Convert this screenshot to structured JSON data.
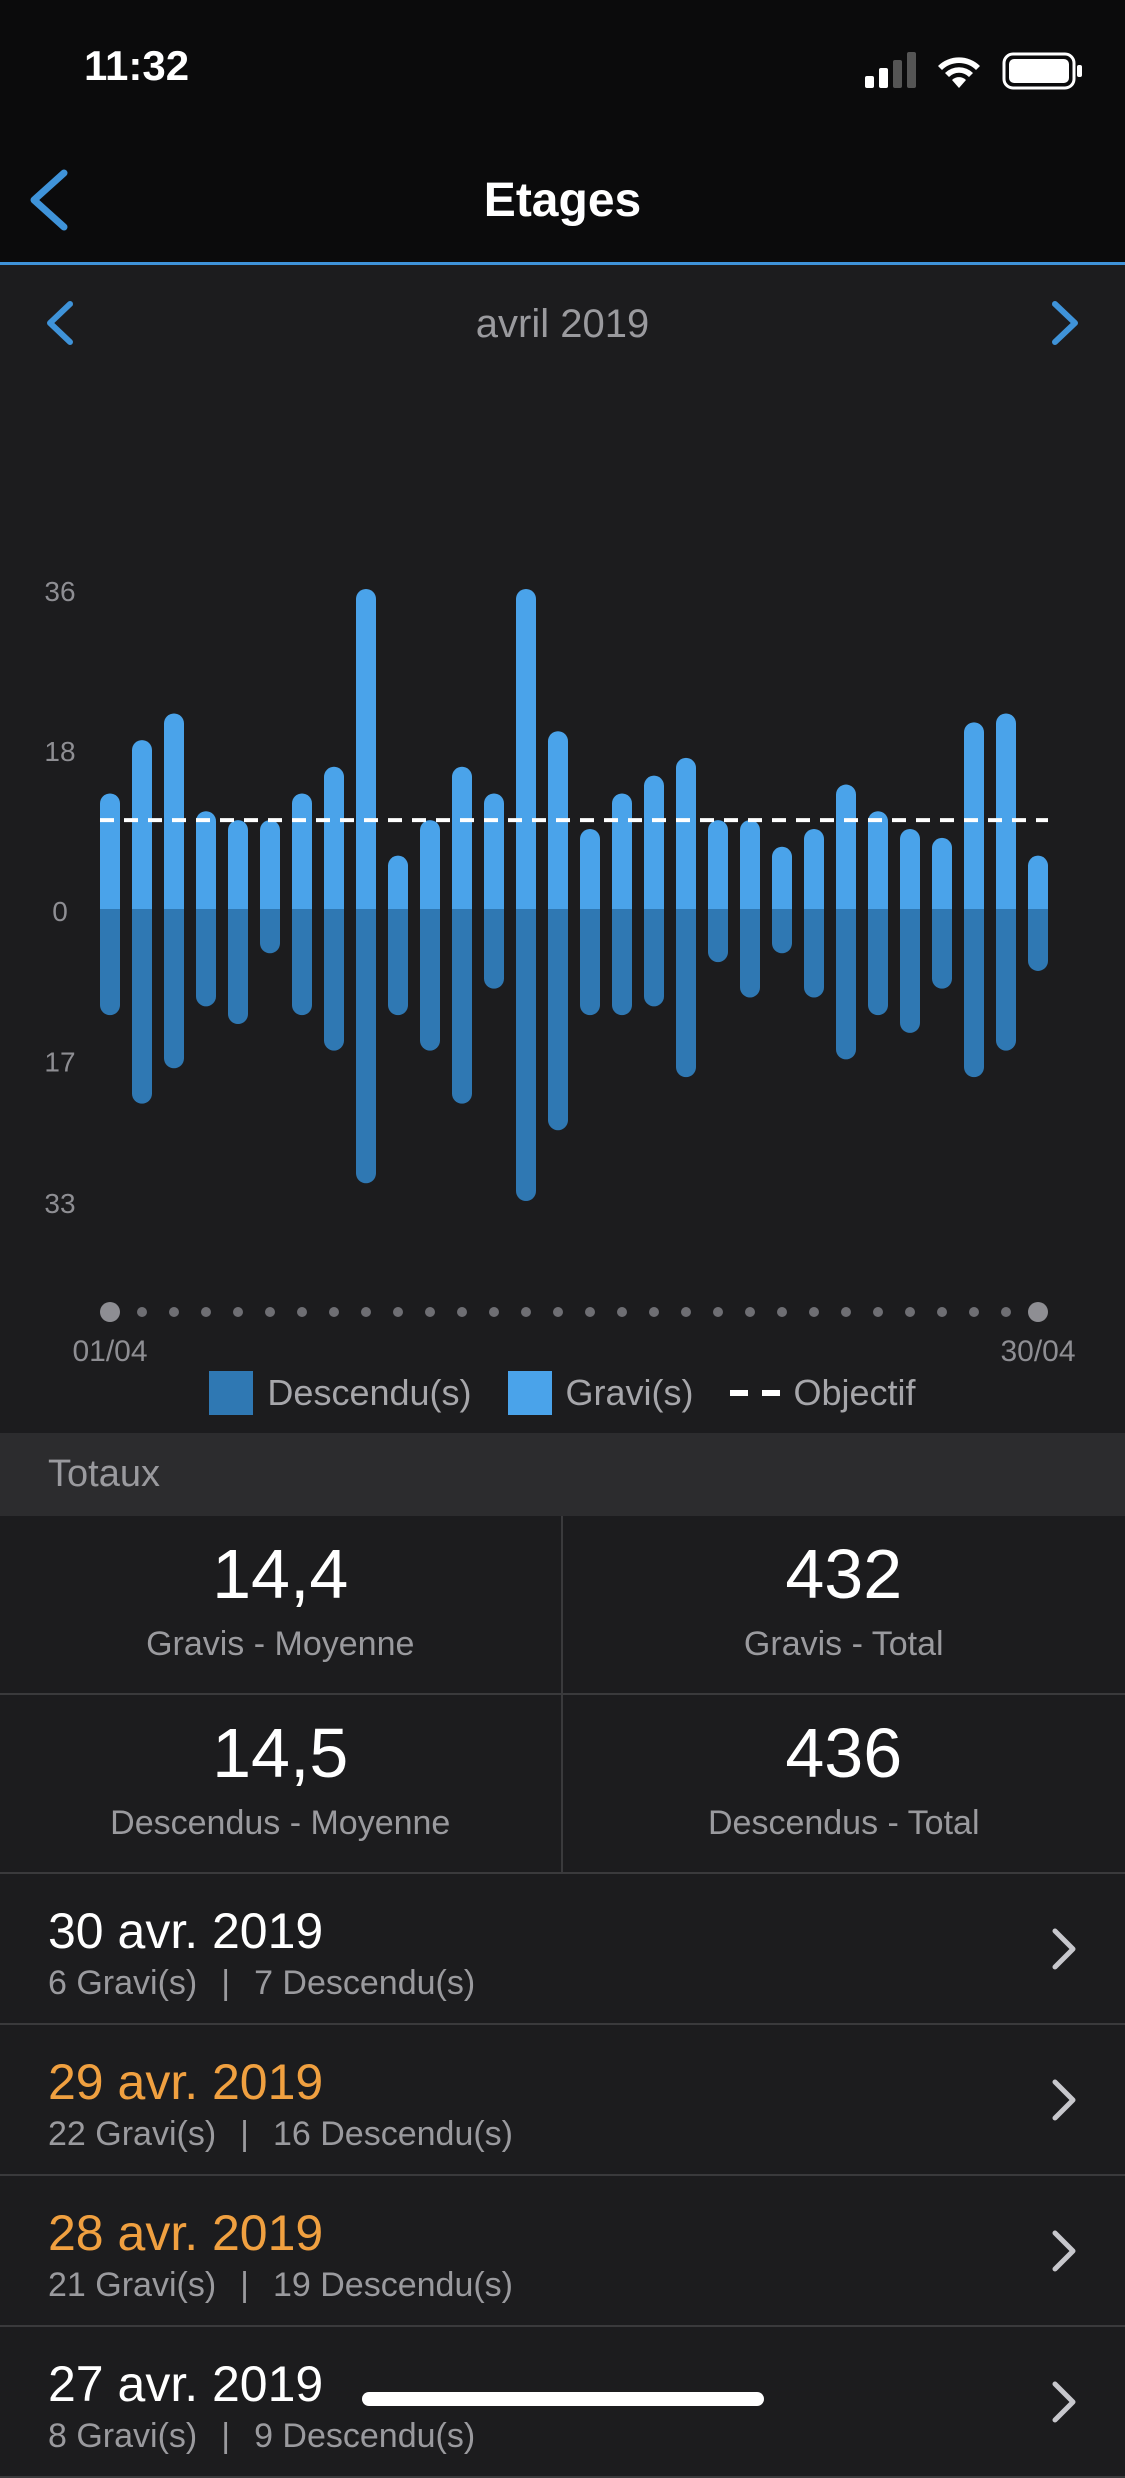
{
  "status_bar": {
    "time": "11:32",
    "icons": [
      "signal-icon",
      "wifi-icon",
      "battery-icon"
    ]
  },
  "nav": {
    "title": "Etages",
    "back_icon": "chevron-left-icon"
  },
  "month_nav": {
    "label": "avril 2019",
    "prev_icon": "chevron-left-icon",
    "next_icon": "chevron-right-icon"
  },
  "colors": {
    "accent": "#3f93d9",
    "climbed": "#4aa3ea",
    "descended": "#2f78b3",
    "highlight_date": "#f0a040",
    "goal_line": "#ffffff"
  },
  "chart_data": {
    "type": "bar",
    "y_ticks_up": [
      "36",
      "18",
      "0"
    ],
    "y_ticks_down": [
      "17",
      "33"
    ],
    "x_start_label": "01/04",
    "x_end_label": "30/04",
    "ylim_up": [
      0,
      36
    ],
    "ylim_down": [
      0,
      33
    ],
    "goal": 10,
    "categories": [
      "01",
      "02",
      "03",
      "04",
      "05",
      "06",
      "07",
      "08",
      "09",
      "10",
      "11",
      "12",
      "13",
      "14",
      "15",
      "16",
      "17",
      "18",
      "19",
      "20",
      "21",
      "22",
      "23",
      "24",
      "25",
      "26",
      "27",
      "28",
      "29",
      "30"
    ],
    "series": [
      {
        "name": "Gravi(s)",
        "values": [
          13,
          19,
          22,
          11,
          10,
          10,
          13,
          16,
          36,
          6,
          10,
          16,
          13,
          36,
          20,
          9,
          13,
          15,
          17,
          10,
          10,
          7,
          9,
          14,
          11,
          9,
          8,
          21,
          22,
          6
        ]
      },
      {
        "name": "Descendu(s)",
        "values": [
          12,
          22,
          18,
          11,
          13,
          5,
          12,
          16,
          31,
          12,
          16,
          22,
          9,
          33,
          25,
          12,
          12,
          11,
          19,
          6,
          10,
          5,
          10,
          17,
          12,
          14,
          9,
          19,
          16,
          7
        ]
      }
    ],
    "legend": [
      {
        "label": "Descendu(s)",
        "kind": "descended"
      },
      {
        "label": "Gravi(s)",
        "kind": "climbed"
      },
      {
        "label": "Objectif",
        "kind": "goal"
      }
    ]
  },
  "totals": {
    "header": "Totaux",
    "cells": [
      {
        "value": "14,4",
        "label": "Gravis - Moyenne"
      },
      {
        "value": "432",
        "label": "Gravis - Total"
      },
      {
        "value": "14,5",
        "label": "Descendus - Moyenne"
      },
      {
        "value": "436",
        "label": "Descendus - Total"
      }
    ]
  },
  "days": [
    {
      "date": "30 avr. 2019",
      "climbed": "6 Gravi(s)",
      "sep": "|",
      "descended": "7 Descendu(s)",
      "highlight": false
    },
    {
      "date": "29 avr. 2019",
      "climbed": "22 Gravi(s)",
      "sep": "|",
      "descended": "16 Descendu(s)",
      "highlight": true
    },
    {
      "date": "28 avr. 2019",
      "climbed": "21 Gravi(s)",
      "sep": "|",
      "descended": "19 Descendu(s)",
      "highlight": true
    },
    {
      "date": "27 avr. 2019",
      "climbed": "8 Gravi(s)",
      "sep": "|",
      "descended": "9 Descendu(s)",
      "highlight": false
    }
  ]
}
